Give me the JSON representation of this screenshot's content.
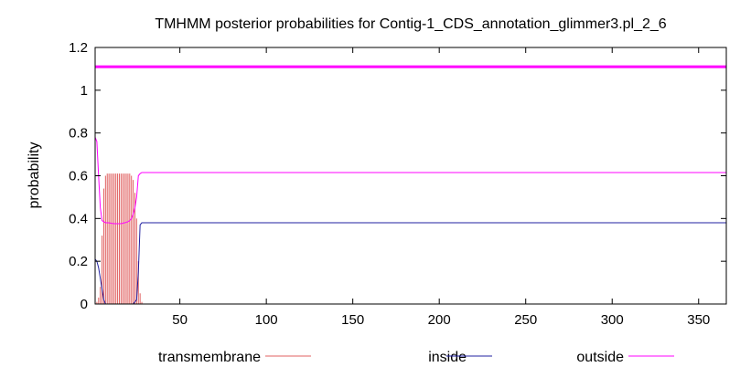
{
  "chart_data": {
    "type": "line",
    "title": "TMHMM posterior probabilities for Contig-1_CDS_annotation_glimmer3.pl_2_6",
    "xlabel": "",
    "ylabel": "probability",
    "xlim": [
      1,
      366
    ],
    "ylim": [
      0,
      1.2
    ],
    "x_ticks": [
      50,
      100,
      150,
      200,
      250,
      300,
      350
    ],
    "y_ticks": [
      0,
      0.2,
      0.4,
      0.6,
      0.8,
      1,
      1.2
    ],
    "y_tick_labels": [
      "0",
      "0.2",
      "0.4",
      "0.6",
      "0.8",
      "1",
      "1.2"
    ],
    "grid": false,
    "legend_position": "bottom",
    "series": [
      {
        "name": "transmembrane",
        "color": "#e06060",
        "style": "impulses",
        "x": [
          1,
          2,
          3,
          4,
          5,
          6,
          7,
          8,
          9,
          10,
          11,
          12,
          13,
          14,
          15,
          16,
          17,
          18,
          19,
          20,
          21,
          22,
          23,
          24,
          25,
          26,
          27,
          28,
          29,
          30
        ],
        "values": [
          0.0,
          0.01,
          0.03,
          0.08,
          0.32,
          0.54,
          0.6,
          0.61,
          0.61,
          0.61,
          0.61,
          0.61,
          0.61,
          0.61,
          0.61,
          0.61,
          0.61,
          0.61,
          0.61,
          0.61,
          0.61,
          0.6,
          0.58,
          0.52,
          0.4,
          0.2,
          0.05,
          0.01,
          0.0,
          0.0
        ]
      },
      {
        "name": "inside",
        "color": "#2020a0",
        "style": "line",
        "x": [
          1,
          2,
          3,
          4,
          5,
          6,
          7,
          8,
          9,
          10,
          11,
          12,
          13,
          14,
          15,
          16,
          17,
          18,
          19,
          20,
          21,
          22,
          23,
          24,
          25,
          26,
          27,
          28,
          29,
          30,
          40,
          60,
          80,
          100,
          150,
          200,
          250,
          300,
          350,
          366
        ],
        "values": [
          0.21,
          0.2,
          0.17,
          0.12,
          0.07,
          0.02,
          0.0,
          0.0,
          0.0,
          0.0,
          0.0,
          0.0,
          0.0,
          0.0,
          0.0,
          0.0,
          0.0,
          0.0,
          0.0,
          0.0,
          0.0,
          0.0,
          0.0,
          0.01,
          0.02,
          0.15,
          0.37,
          0.38,
          0.38,
          0.38,
          0.38,
          0.38,
          0.38,
          0.38,
          0.38,
          0.38,
          0.38,
          0.38,
          0.38,
          0.38
        ]
      },
      {
        "name": "outside",
        "color": "#ff00ff",
        "style": "line",
        "x": [
          1,
          2,
          3,
          4,
          5,
          6,
          7,
          8,
          9,
          10,
          11,
          12,
          13,
          14,
          15,
          16,
          17,
          18,
          19,
          20,
          21,
          22,
          23,
          24,
          25,
          26,
          27,
          28,
          29,
          30,
          40,
          60,
          80,
          100,
          150,
          200,
          250,
          300,
          350,
          366
        ],
        "values": [
          0.78,
          0.76,
          0.6,
          0.45,
          0.39,
          0.385,
          0.38,
          0.38,
          0.38,
          0.378,
          0.377,
          0.376,
          0.376,
          0.376,
          0.376,
          0.376,
          0.378,
          0.38,
          0.382,
          0.385,
          0.39,
          0.4,
          0.42,
          0.45,
          0.5,
          0.6,
          0.61,
          0.615,
          0.615,
          0.615,
          0.615,
          0.615,
          0.615,
          0.615,
          0.615,
          0.615,
          0.615,
          0.615,
          0.615,
          0.615
        ]
      },
      {
        "name": "",
        "color": "#ff00ff",
        "style": "thick-line",
        "x": [
          1,
          366
        ],
        "values": [
          1.11,
          1.11
        ]
      }
    ]
  }
}
